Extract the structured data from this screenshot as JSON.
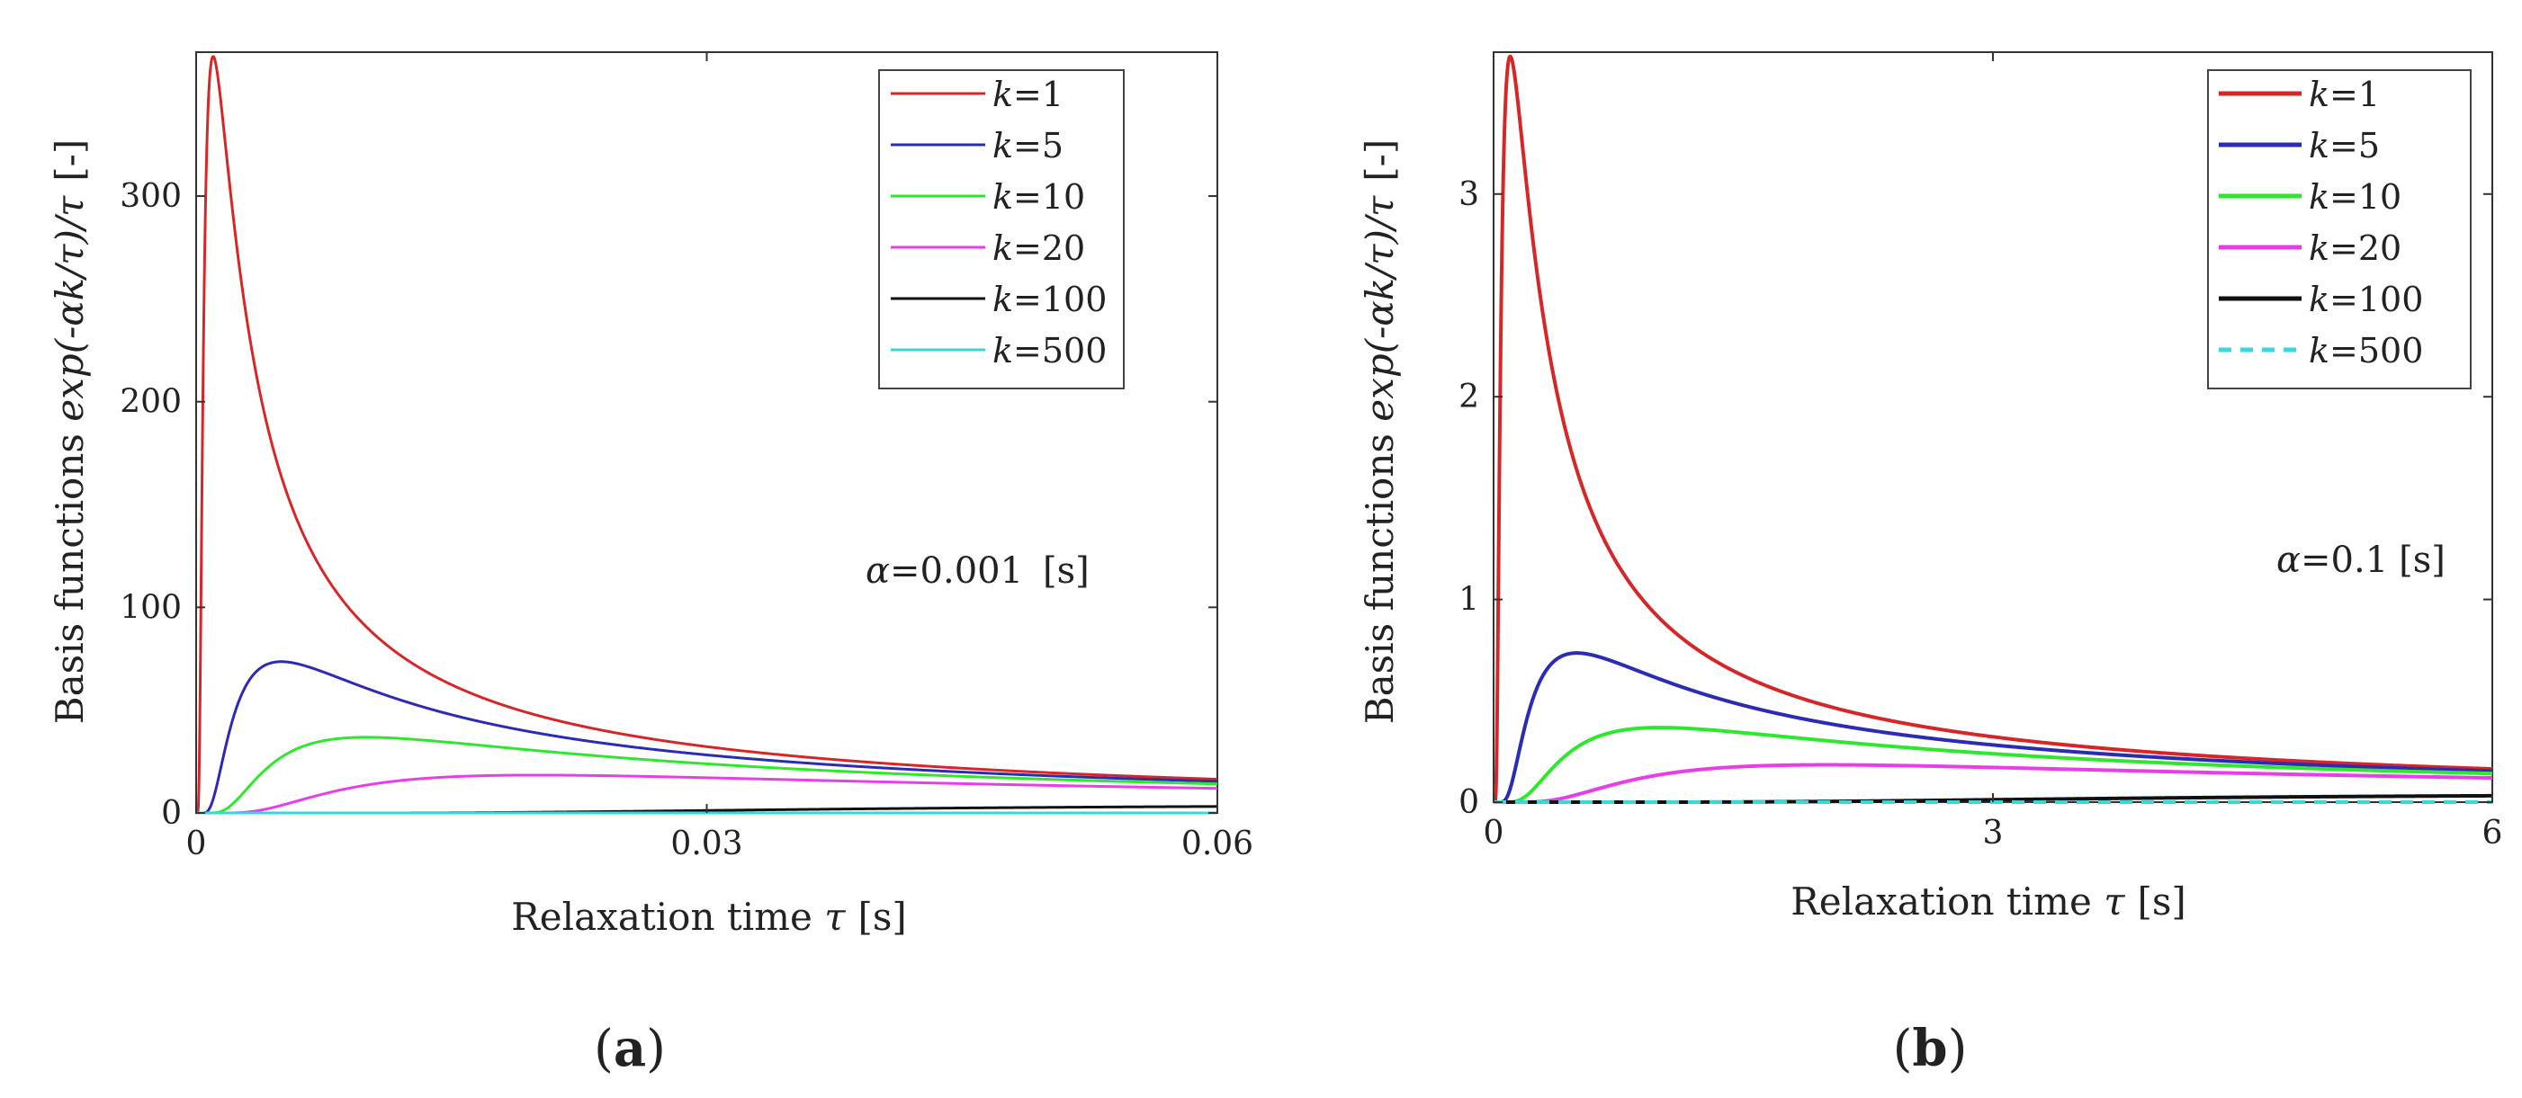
{
  "chart_data": [
    {
      "type": "line",
      "panel_label": "a",
      "alpha": 0.001,
      "annotation": {
        "symbol": "α",
        "text": "=0.001",
        "unit": "[s]"
      },
      "xlabel": "Relaxation time τ [s]",
      "xlabel_parts": {
        "prefix": "Relaxation time ",
        "symbol": "τ",
        "unit": "[s]"
      },
      "ylabel": "Basis functions exp(-αk/τ)/τ [-]",
      "ylabel_parts": {
        "prefix": "Basis functions ",
        "formula": "exp(-αk/τ)/τ",
        "unit": "[-]"
      },
      "xlim": [
        0,
        0.06
      ],
      "ylim": [
        0,
        370
      ],
      "xticks": [
        0,
        0.03,
        0.06
      ],
      "xtick_labels": [
        "0",
        "0.03",
        "0.06"
      ],
      "yticks": [
        0,
        100,
        200,
        300
      ],
      "ytick_labels": [
        "0",
        "100",
        "200",
        "300"
      ],
      "legend_position": "top-right",
      "series": [
        {
          "name": "k=1",
          "k": 1,
          "color": "#d62728",
          "dash": "solid"
        },
        {
          "name": "k=5",
          "k": 5,
          "color": "#2b2bb5",
          "dash": "solid"
        },
        {
          "name": "k=10",
          "k": 10,
          "color": "#2ee82e",
          "dash": "solid"
        },
        {
          "name": "k=20",
          "k": 20,
          "color": "#e83ee8",
          "dash": "solid"
        },
        {
          "name": "k=100",
          "k": 100,
          "color": "#111111",
          "dash": "solid"
        },
        {
          "name": "k=500",
          "k": 500,
          "color": "#3dd6d6",
          "dash": "solid"
        }
      ]
    },
    {
      "type": "line",
      "panel_label": "b",
      "alpha": 0.1,
      "annotation": {
        "symbol": "α",
        "text": "=0.1",
        "unit": "[s]"
      },
      "xlabel": "Relaxation time τ [s]",
      "xlabel_parts": {
        "prefix": "Relaxation time ",
        "symbol": "τ",
        "unit": "[s]"
      },
      "ylabel": "Basis functions exp(-αk/τ)/τ [-]",
      "ylabel_parts": {
        "prefix": "Basis functions ",
        "formula": "exp(-αk/τ)/τ",
        "unit": "[-]"
      },
      "xlim": [
        0,
        6
      ],
      "ylim": [
        0,
        3.7
      ],
      "xticks": [
        0,
        3,
        6
      ],
      "xtick_labels": [
        "0",
        "3",
        "6"
      ],
      "yticks": [
        0,
        1,
        2,
        3
      ],
      "ytick_labels": [
        "0",
        "1",
        "2",
        "3"
      ],
      "legend_position": "top-right",
      "series": [
        {
          "name": "k=1",
          "k": 1,
          "color": "#d62728",
          "dash": "solid"
        },
        {
          "name": "k=5",
          "k": 5,
          "color": "#2b2bb5",
          "dash": "solid"
        },
        {
          "name": "k=10",
          "k": 10,
          "color": "#2ee82e",
          "dash": "solid"
        },
        {
          "name": "k=20",
          "k": 20,
          "color": "#e83ee8",
          "dash": "solid"
        },
        {
          "name": "k=100",
          "k": 100,
          "color": "#111111",
          "dash": "solid"
        },
        {
          "name": "k=500",
          "k": 500,
          "color": "#3dd6d6",
          "dash": "dashed"
        }
      ]
    }
  ]
}
